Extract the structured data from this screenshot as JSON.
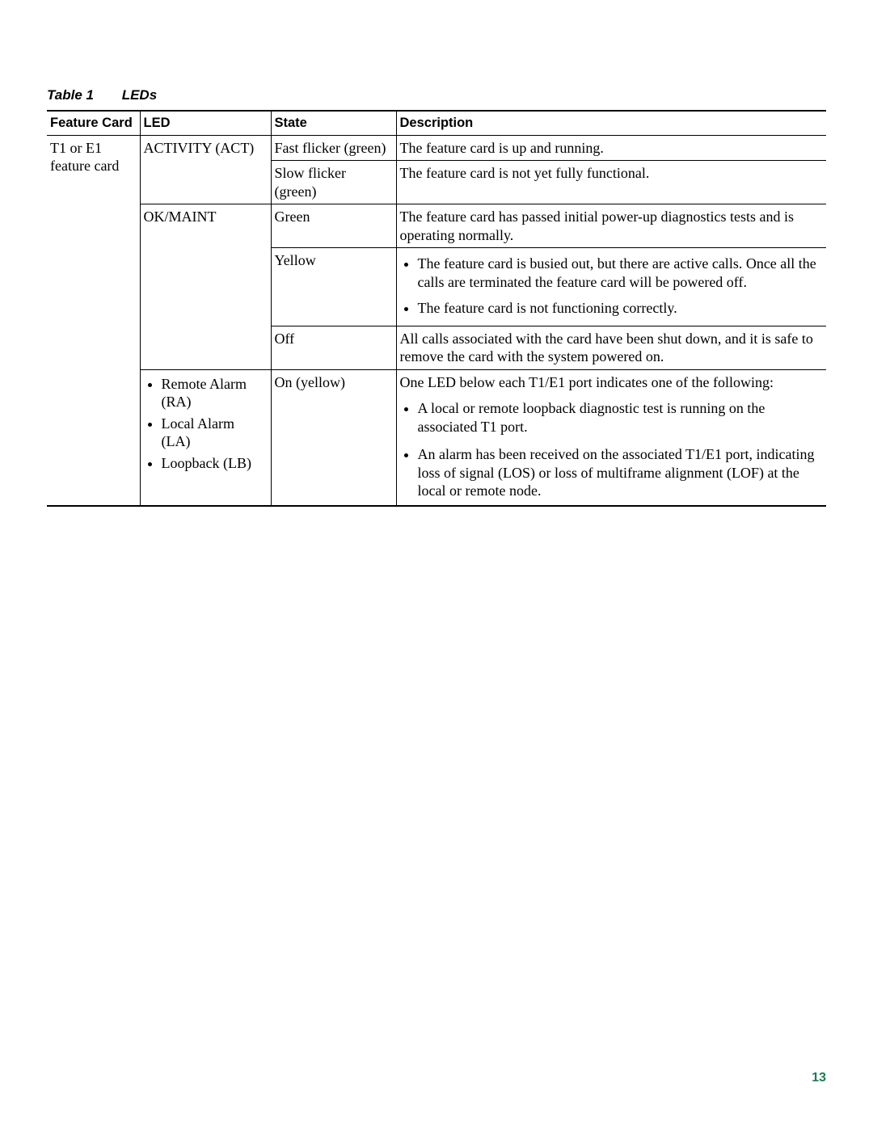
{
  "caption": {
    "label": "Table 1",
    "title": "LEDs"
  },
  "headers": {
    "c1": "Feature Card",
    "c2": "LED",
    "c3": "State",
    "c4": "Description"
  },
  "feature_card": "T1 or E1 feature card",
  "rows": {
    "activity": {
      "led": "ACTIVITY (ACT)",
      "states": [
        {
          "state": "Fast flicker (green)",
          "desc": "The feature card is up and running."
        },
        {
          "state": "Slow flicker (green)",
          "desc": "The feature card is not yet fully functional."
        }
      ]
    },
    "okmaint": {
      "led": "OK/MAINT",
      "green": {
        "state": "Green",
        "desc": "The feature card has passed initial power-up diagnostics tests and is operating normally."
      },
      "yellow": {
        "state": "Yellow",
        "bullets": [
          "The feature card is busied out, but there are active calls. Once all the calls are terminated the feature card will be powered off.",
          "The feature card is not functioning correctly."
        ]
      },
      "off": {
        "state": "Off",
        "desc": "All calls associated with the card have been shut down, and it is safe to remove the card with the system powered on."
      }
    },
    "alarms": {
      "led_items": [
        "Remote Alarm (RA)",
        "Local Alarm (LA)",
        "Loopback (LB)"
      ],
      "state": "On (yellow)",
      "intro": "One LED below each T1/E1 port indicates one of the following:",
      "bullets": [
        "A local or remote loopback diagnostic test is running on the associated T1 port.",
        "An alarm has been received on the associated T1/E1 port, indicating loss of signal (LOS) or loss of multiframe alignment (LOF) at the local or remote node."
      ]
    }
  },
  "page_number": "13",
  "colors": {
    "page_number": "#1f7a52",
    "rule": "#000000",
    "background": "#ffffff"
  },
  "typography": {
    "body_font": "Times New Roman",
    "header_font": "Arial",
    "body_size_pt": 13,
    "header_size_pt": 12
  }
}
